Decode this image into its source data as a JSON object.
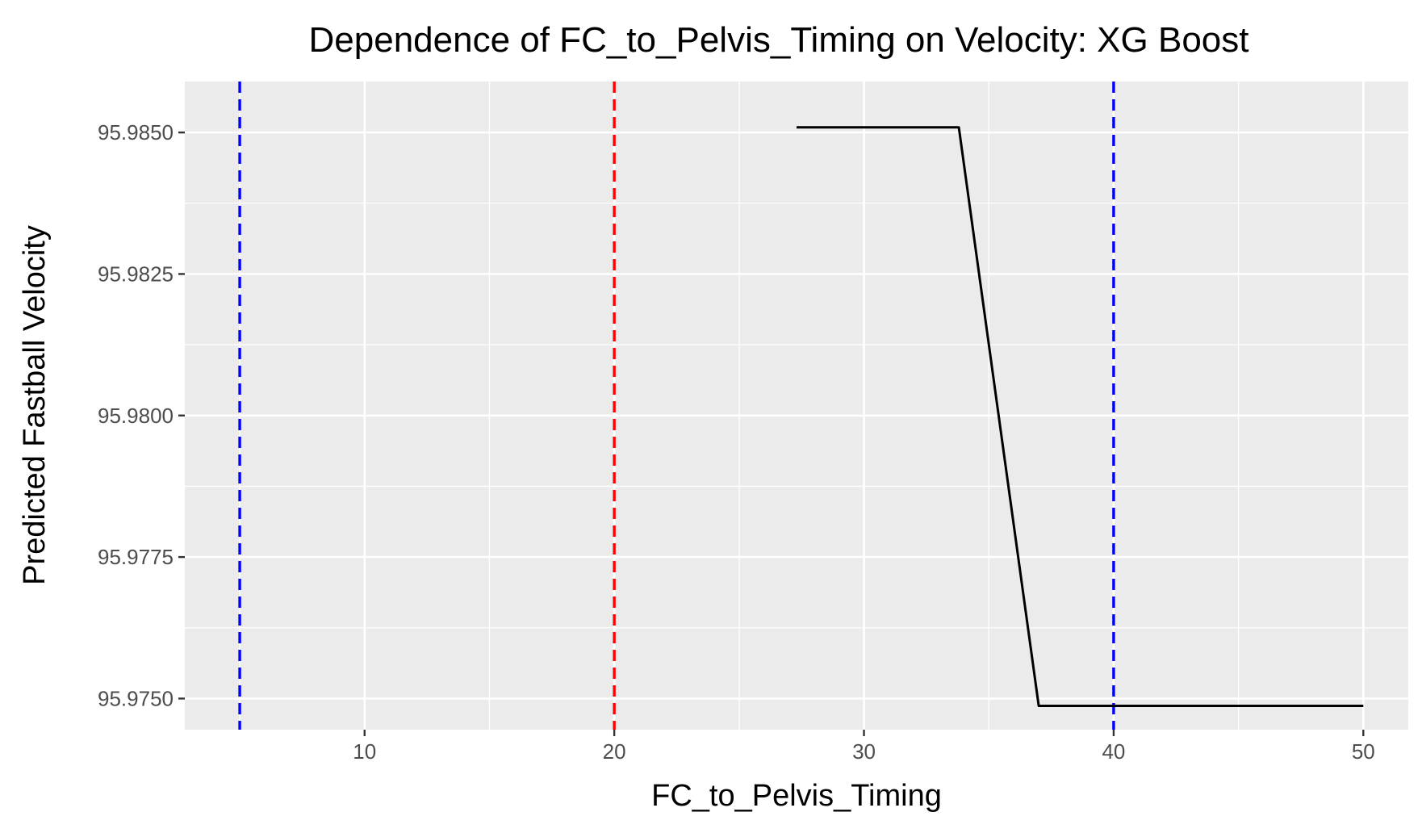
{
  "chart_data": {
    "type": "line",
    "title": "Dependence of FC_to_Pelvis_Timing on Velocity: XG Boost",
    "xlabel": "FC_to_Pelvis_Timing",
    "ylabel": "Predicted Fastball Velocity",
    "xlim": [
      2.8,
      51.8
    ],
    "ylim": [
      95.97445,
      95.9859
    ],
    "x_ticks": [
      10,
      20,
      30,
      40,
      50
    ],
    "x_tick_labels": [
      "10",
      "20",
      "30",
      "40",
      "50"
    ],
    "y_ticks": [
      95.975,
      95.9775,
      95.98,
      95.9825,
      95.985
    ],
    "y_tick_labels": [
      "95.9750",
      "95.9775",
      "95.9800",
      "95.9825",
      "95.9850"
    ],
    "grid": true,
    "series": [
      {
        "color": "#000000",
        "x": [
          27.3,
          33.8,
          37.0,
          50.0
        ],
        "y": [
          95.98509,
          95.98509,
          95.97487,
          95.97487
        ]
      }
    ],
    "reference_lines": [
      {
        "axis": "x",
        "value": 5.0,
        "color": "#0000ff",
        "style": "dashed"
      },
      {
        "axis": "x",
        "value": 20.0,
        "color": "#ff0000",
        "style": "dashed"
      },
      {
        "axis": "x",
        "value": 40.0,
        "color": "#0000ff",
        "style": "dashed"
      }
    ],
    "colors": {
      "panel_background": "#ebebeb",
      "gridline": "#ffffff",
      "tick_text": "#4d4d4d",
      "tick_mark": "#333333"
    }
  }
}
